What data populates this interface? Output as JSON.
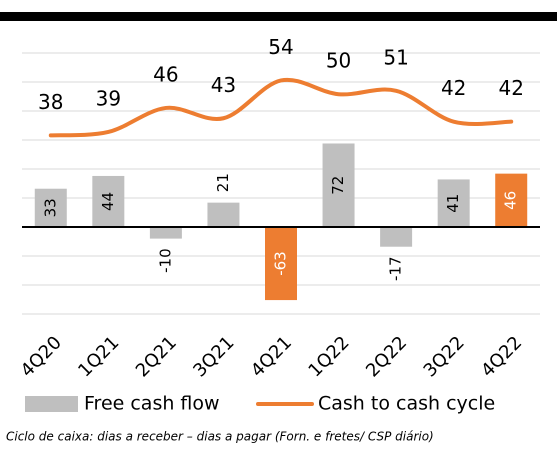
{
  "chart_data": {
    "type": "bar-line",
    "categories": [
      "4Q20",
      "1Q21",
      "2Q21",
      "3Q21",
      "4Q21",
      "1Q22",
      "2Q22",
      "3Q22",
      "4Q22"
    ],
    "series": [
      {
        "name": "Free cash flow",
        "type": "bar",
        "color": "#bfbfbf",
        "colors": [
          "#bfbfbf",
          "#bfbfbf",
          "#bfbfbf",
          "#bfbfbf",
          "#ed7d31",
          "#bfbfbf",
          "#bfbfbf",
          "#bfbfbf",
          "#ed7d31"
        ],
        "values": [
          33,
          44,
          -10,
          21,
          -63,
          72,
          -17,
          41,
          46
        ]
      },
      {
        "name": "Cash to cash cycle",
        "type": "line",
        "axis": "y2",
        "color": "#ed7d31",
        "values": [
          38,
          39,
          46,
          43,
          54,
          50,
          51,
          42,
          42
        ]
      }
    ],
    "ylim": [
      -75,
      150
    ],
    "yticks": [
      -75,
      -50,
      -25,
      0,
      25,
      50,
      75,
      100,
      125,
      150
    ],
    "y2lim": [
      -14,
      62
    ],
    "grid": true,
    "legend": "bottom",
    "note": "Ciclo de caixa: dias a receber – dias a pagar (Forn. e fretes/ CSP diário)"
  }
}
